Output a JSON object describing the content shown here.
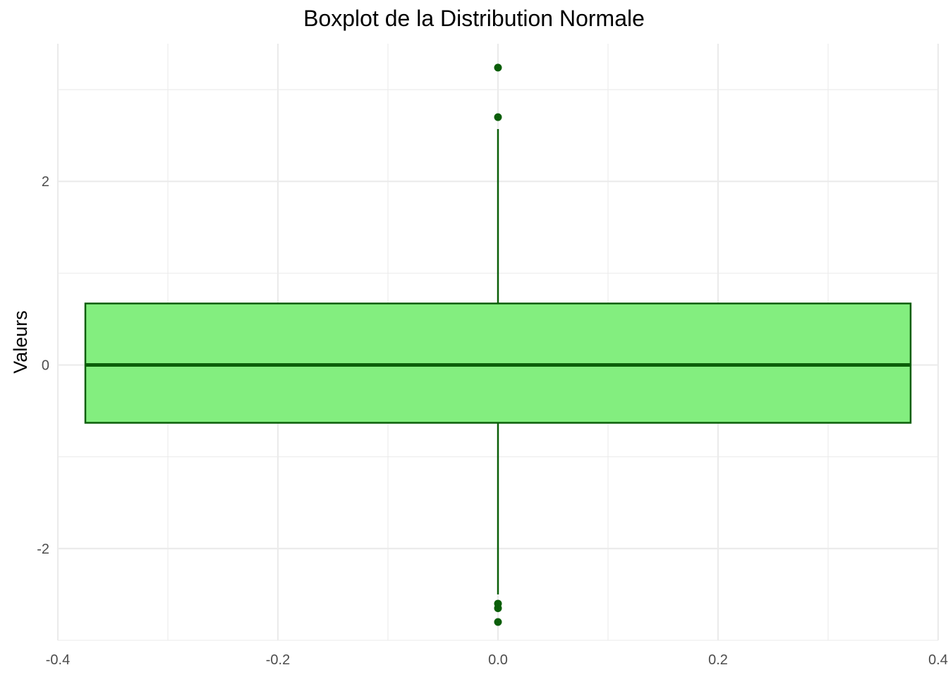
{
  "chart_data": {
    "type": "boxplot",
    "title": "Boxplot de la Distribution Normale",
    "xlabel": "",
    "ylabel": "Valeurs",
    "xlim": [
      -0.4,
      0.4
    ],
    "ylim": [
      -3.0,
      3.5
    ],
    "x_ticks": [
      -0.4,
      -0.2,
      0.0,
      0.2,
      0.4
    ],
    "x_tick_labels": [
      "-0.4",
      "-0.2",
      "0.0",
      "0.2",
      "0.4"
    ],
    "y_ticks": [
      -2,
      0,
      2
    ],
    "y_tick_labels": [
      "-2",
      "0",
      "2"
    ],
    "grid": true,
    "box": {
      "x_center": 0.0,
      "x_min": -0.375,
      "x_max": 0.375,
      "q1": -0.63,
      "median": 0.0,
      "q3": 0.67,
      "whisker_low": -2.5,
      "whisker_high": 2.57
    },
    "outliers": [
      3.24,
      2.7,
      -2.6,
      -2.65,
      -2.8
    ],
    "colors": {
      "fill": "#83ee7f",
      "stroke": "#0b5e09",
      "point": "#0b5e09",
      "grid": "#ebebeb"
    }
  }
}
